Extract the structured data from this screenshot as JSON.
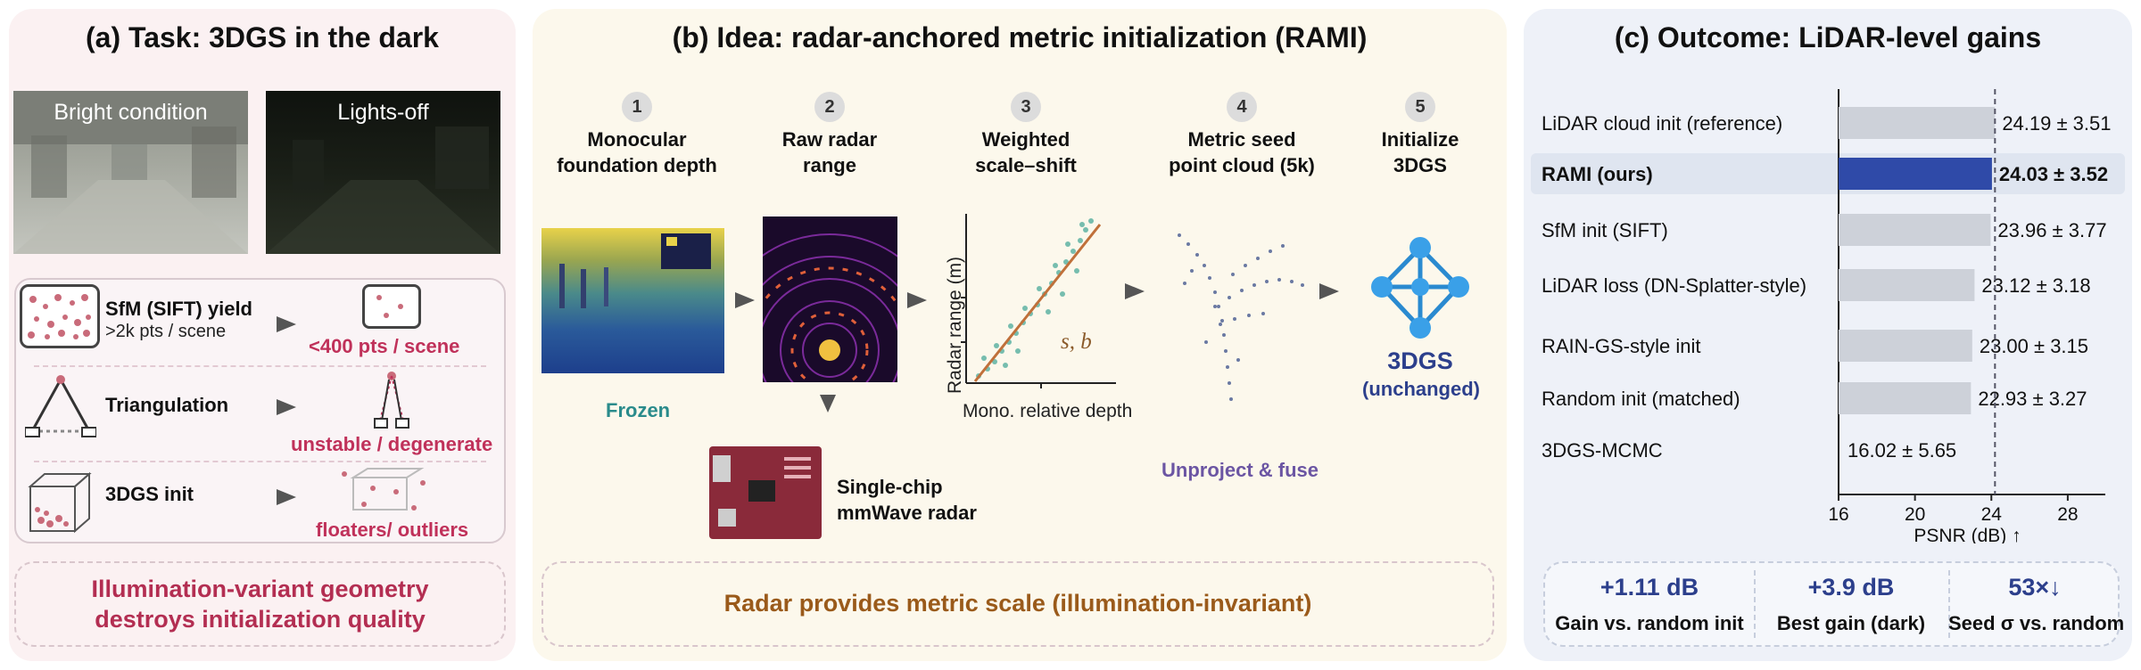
{
  "panel_a": {
    "title": "(a) Task: 3DGS in the dark",
    "photo_bright": "Bright condition",
    "photo_dark": "Lights-off",
    "row1_title": "SfM (SIFT) yield",
    "row1_sub": ">2k pts / scene",
    "row1_result": "<400 pts / scene",
    "row2_title": "Triangulation",
    "row2_result": "unstable / degenerate",
    "row3_title": "3DGS init",
    "row3_result": "floaters/ outliers",
    "conclusion_line1": "Illumination-variant geometry",
    "conclusion_line2": "destroys initialization quality"
  },
  "panel_b": {
    "title": "(b) Idea: radar-anchored metric initialization (RAMI)",
    "steps": [
      {
        "num": "1",
        "line1": "Monocular",
        "line2": "foundation depth"
      },
      {
        "num": "2",
        "line1": "Raw radar",
        "line2": "range"
      },
      {
        "num": "3",
        "line1": "Weighted",
        "line2": "scale–shift"
      },
      {
        "num": "4",
        "line1": "Metric seed",
        "line2": "point cloud (5k)"
      },
      {
        "num": "5",
        "line1": "Initialize",
        "line2": "3DGS"
      }
    ],
    "frozen": "Frozen",
    "radar_line1": "Single-chip",
    "radar_line2": "mmWave radar",
    "scatter_ylabel": "Radar range (m)",
    "scatter_xlabel": "Mono. relative depth",
    "scatter_annot": "s, b",
    "unproject": "Unproject & fuse",
    "gs_label": "3DGS",
    "gs_sub": "(unchanged)",
    "conclusion": "Radar provides metric scale (illumination-invariant)"
  },
  "panel_c": {
    "title": "(c) Outcome: LiDAR-level gains",
    "stats": [
      {
        "value": "+1.11 dB",
        "label": "Gain vs. random init"
      },
      {
        "value": "+3.9 dB",
        "label": "Best gain (dark)"
      },
      {
        "value": "53×↓",
        "label": "Seed σ vs. random"
      }
    ]
  },
  "chart_data": {
    "type": "bar",
    "orientation": "horizontal",
    "categories": [
      "LiDAR cloud init (reference)",
      "RAMI (ours)",
      "SfM init (SIFT)",
      "LiDAR loss (DN-Splatter-style)",
      "RAIN-GS-style init",
      "Random init (matched)",
      "3DGS-MCMC"
    ],
    "values": [
      24.19,
      24.03,
      23.96,
      23.12,
      23.0,
      22.93,
      16.02
    ],
    "value_labels": [
      "24.19 ± 3.51",
      "24.03 ± 3.52",
      "23.96 ± 3.77",
      "23.12 ± 3.18",
      "23.00 ± 3.15",
      "22.93 ± 3.27",
      "16.02 ± 5.65"
    ],
    "highlight": "RAMI (ours)",
    "reference_line": 24.19,
    "xlabel": "PSNR (dB) ↑",
    "xlim": [
      16,
      29.5
    ],
    "xticks": [
      16,
      20,
      24,
      28
    ],
    "colors": {
      "bar": "#cdd1d9",
      "highlight": "#2f4aa8"
    }
  }
}
